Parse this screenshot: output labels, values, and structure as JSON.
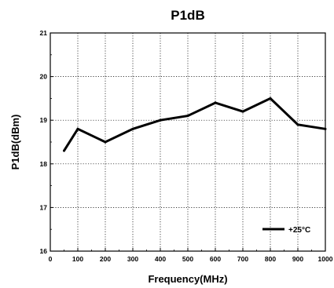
{
  "chart_data": {
    "type": "line",
    "title": "P1dB",
    "xlabel": "Frequency(MHz)",
    "ylabel": "P1dB(dBm)",
    "xlim": [
      0,
      1000
    ],
    "ylim": [
      16,
      21
    ],
    "x_ticks": [
      "0",
      "100",
      "200",
      "300",
      "400",
      "500",
      "600",
      "700",
      "800",
      "900",
      "1000"
    ],
    "y_ticks": [
      "16",
      "17",
      "18",
      "19",
      "20",
      "21"
    ],
    "grid": "dotted",
    "legend_position": "bottom-right",
    "series": [
      {
        "name": "+25°C",
        "color": "#000000",
        "x": [
          50,
          100,
          200,
          300,
          400,
          500,
          600,
          700,
          800,
          900,
          1000
        ],
        "y": [
          18.3,
          18.8,
          18.5,
          18.8,
          19.0,
          19.1,
          19.4,
          19.2,
          19.5,
          18.9,
          18.8
        ]
      }
    ]
  }
}
